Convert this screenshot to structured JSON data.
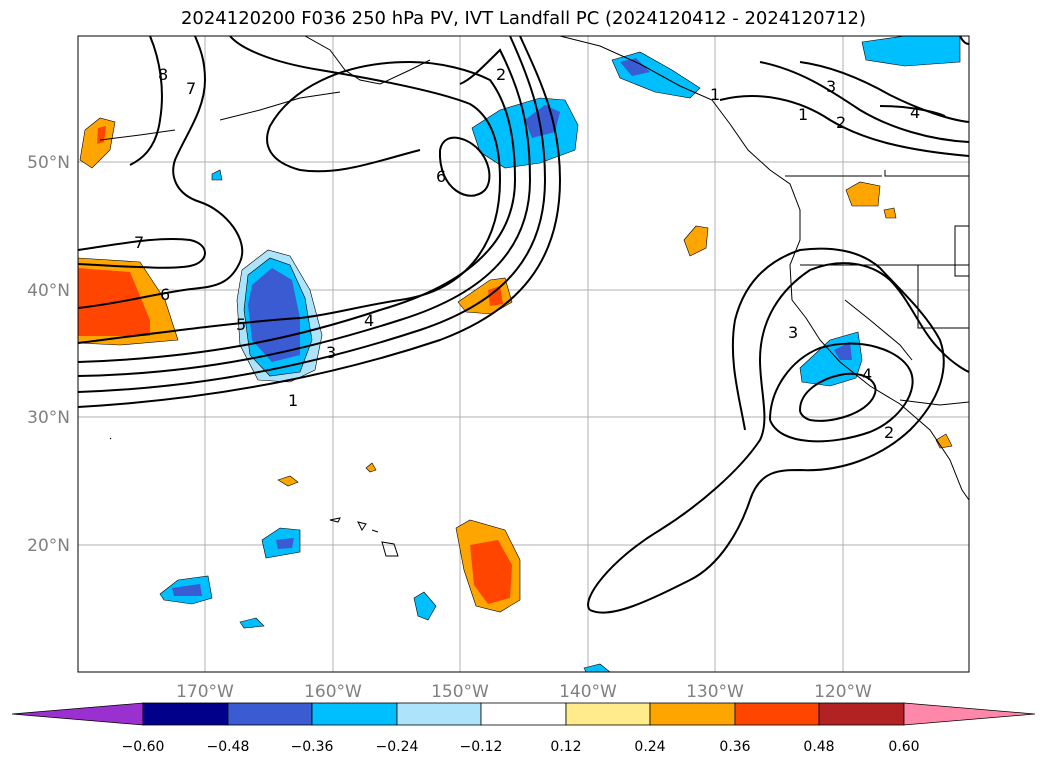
{
  "title": "2024120200 F036 250 hPa PV, IVT Landfall PC (2024120412 - 2024120712)",
  "axes": {
    "lon_labels": [
      "170°W",
      "160°W",
      "150°W",
      "140°W",
      "130°W",
      "120°W"
    ],
    "lat_labels": [
      "50°N",
      "40°N",
      "30°N",
      "20°N"
    ]
  },
  "colorbar": {
    "ticks": [
      "−0.60",
      "−0.48",
      "−0.36",
      "−0.24",
      "−0.12",
      "0.12",
      "0.24",
      "0.36",
      "0.48",
      "0.60"
    ],
    "colors": [
      "#9b30d0",
      "#00008b",
      "#3a5bd2",
      "#00bfff",
      "#aee4fb",
      "#ffffff",
      "#ffeb8c",
      "#ffa500",
      "#ff4500",
      "#b22222",
      "#ff88aa"
    ]
  },
  "contour_labels": [
    "8",
    "7",
    "2",
    "3",
    "4",
    "1",
    "2",
    "6",
    "7",
    "6",
    "5",
    "4",
    "3",
    "1",
    "1",
    "3",
    "4",
    "2"
  ]
}
